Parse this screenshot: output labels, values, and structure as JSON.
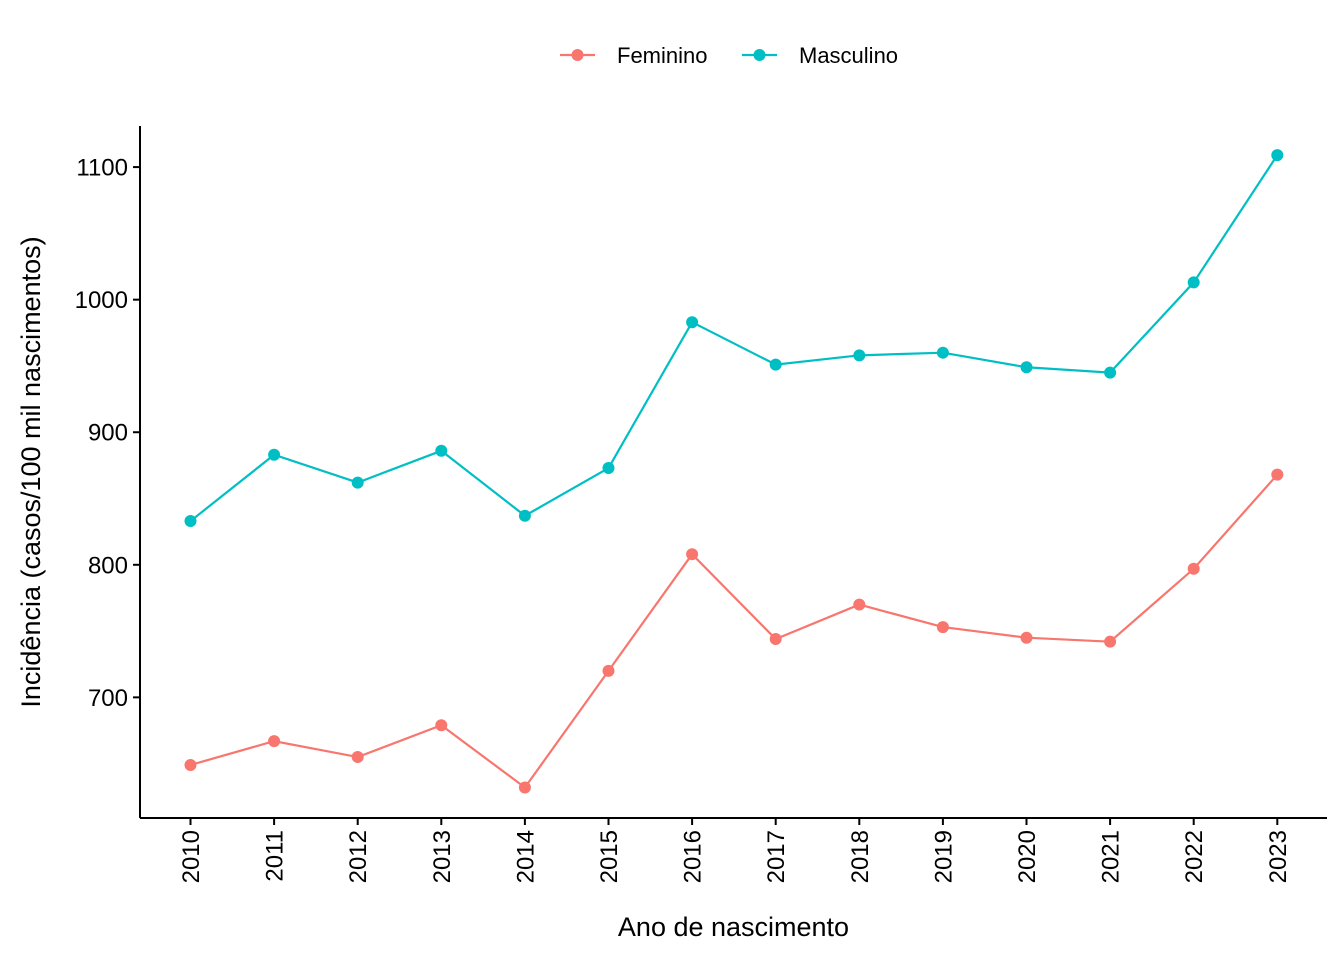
{
  "chart_data": {
    "type": "line",
    "x": [
      "2010",
      "2011",
      "2012",
      "2013",
      "2014",
      "2015",
      "2016",
      "2017",
      "2018",
      "2019",
      "2020",
      "2021",
      "2022",
      "2023"
    ],
    "series": [
      {
        "name": "Feminino",
        "color": "#F8766D",
        "values": [
          649,
          667,
          655,
          679,
          632,
          720,
          808,
          744,
          770,
          753,
          745,
          742,
          797,
          868
        ]
      },
      {
        "name": "Masculino",
        "color": "#00BFC4",
        "values": [
          833,
          883,
          862,
          886,
          837,
          873,
          983,
          951,
          958,
          960,
          949,
          945,
          1013,
          1109
        ]
      }
    ],
    "xlabel": "Ano de nascimento",
    "ylabel": "Incidência (casos/100 mil nascimentos)",
    "yticks": [
      700,
      800,
      900,
      1000,
      1100
    ],
    "ylim": [
      609,
      1131
    ],
    "grid": false,
    "legend_position": "top"
  }
}
